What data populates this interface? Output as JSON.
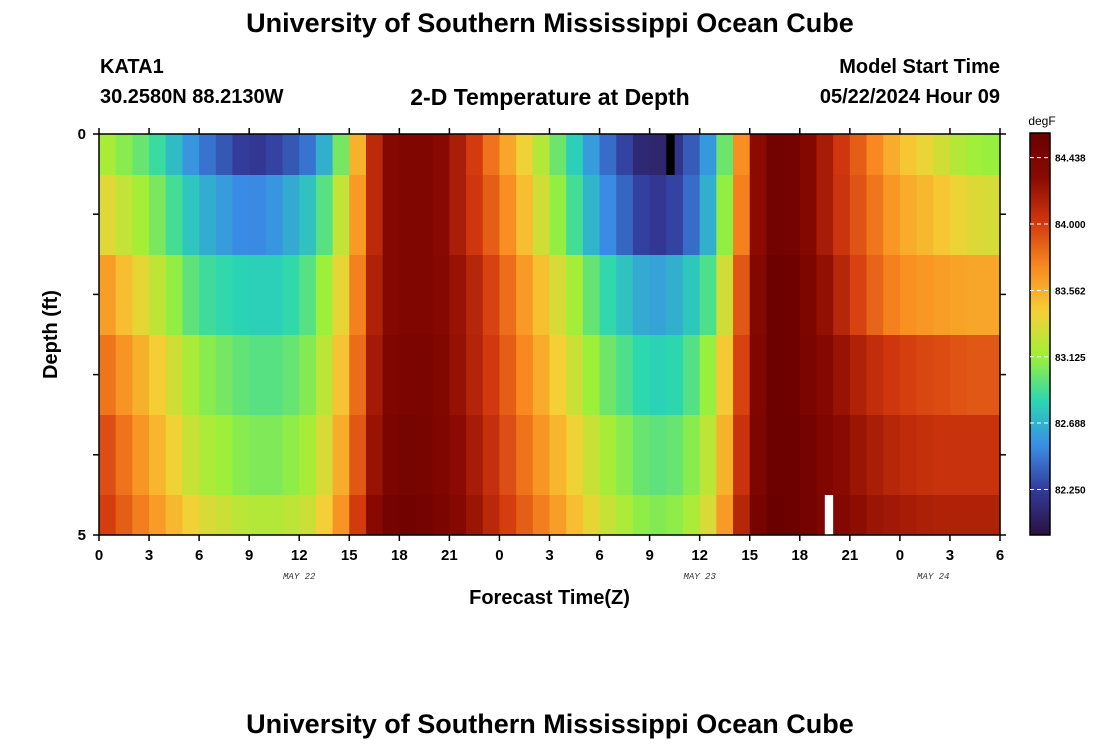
{
  "header": {
    "main_title": "University of Southern Mississippi Ocean Cube",
    "station_id": "KATA1",
    "station_coords": "30.2580N  88.2130W",
    "plot_title": "2-D Temperature at Depth",
    "model_start_label": "Model Start Time",
    "model_start_value": "05/22/2024 Hour 09"
  },
  "footer": {
    "title": "University of Southern Mississippi Ocean Cube"
  },
  "chart_data": {
    "type": "heatmap",
    "title": "2-D Temperature at Depth",
    "xlabel": "Forecast Time(Z)",
    "ylabel": "Depth (ft)",
    "x_start_hour": 0,
    "x_end_hour": 54,
    "x_tick_labels": [
      "0",
      "3",
      "6",
      "9",
      "12",
      "15",
      "18",
      "21",
      "0",
      "3",
      "6",
      "9",
      "12",
      "15",
      "18",
      "21",
      "0",
      "3",
      "6"
    ],
    "date_labels": [
      {
        "label": "MAY 22",
        "hour": 12
      },
      {
        "label": "MAY 23",
        "hour": 36
      },
      {
        "label": "MAY 24",
        "hour": 50
      }
    ],
    "y_tick_labels": [
      "0",
      "5"
    ],
    "ylim": [
      0,
      5
    ],
    "depths_ft": [
      0.25,
      1.5,
      2.5,
      3.5,
      4.5,
      5.0
    ],
    "colorbar": {
      "unit": "degF",
      "min": 81.95,
      "max": 84.6,
      "ticks": [
        "84.438",
        "84.000",
        "83.562",
        "83.125",
        "82.688",
        "82.250"
      ],
      "tick_values": [
        84.438,
        84.0,
        83.562,
        83.125,
        82.688,
        82.25
      ],
      "colors": [
        "#2a1140",
        "#333a9a",
        "#3a8de6",
        "#2ad7b2",
        "#9ef038",
        "#f5d036",
        "#f98a20",
        "#d2380e",
        "#8a0a02",
        "#6a0000"
      ]
    },
    "key_times_hours": [
      0,
      3,
      6,
      9,
      11,
      13,
      15,
      16,
      17,
      18,
      20,
      22,
      24,
      27,
      30,
      33,
      35,
      37,
      38,
      39,
      40,
      41,
      42,
      44,
      46,
      48,
      50,
      52,
      54
    ],
    "key_values_degF": [
      [
        83.2,
        82.95,
        82.5,
        82.2,
        82.3,
        82.5,
        83.2,
        83.9,
        84.3,
        84.4,
        84.4,
        84.1,
        83.7,
        83.1,
        82.5,
        82.05,
        82.25,
        82.7,
        83.3,
        84.1,
        84.5,
        84.55,
        84.45,
        84.1,
        83.8,
        83.5,
        83.35,
        83.15,
        83.1
      ],
      [
        83.4,
        83.1,
        82.7,
        82.5,
        82.6,
        82.8,
        83.4,
        83.9,
        84.3,
        84.4,
        84.4,
        84.1,
        83.8,
        83.2,
        82.6,
        82.2,
        82.3,
        82.8,
        83.4,
        84.1,
        84.5,
        84.55,
        84.45,
        84.1,
        83.85,
        83.6,
        83.5,
        83.35,
        83.3
      ],
      [
        83.7,
        83.3,
        82.9,
        82.8,
        82.8,
        83.0,
        83.5,
        84.0,
        84.3,
        84.4,
        84.4,
        84.2,
        83.9,
        83.4,
        82.9,
        82.6,
        82.7,
        83.0,
        83.6,
        84.2,
        84.55,
        84.6,
        84.5,
        84.2,
        83.9,
        83.7,
        83.65,
        83.6,
        83.6
      ],
      [
        83.85,
        83.5,
        83.1,
        82.95,
        82.95,
        83.1,
        83.6,
        84.05,
        84.35,
        84.45,
        84.45,
        84.2,
        83.95,
        83.5,
        83.05,
        82.8,
        82.85,
        83.2,
        83.7,
        84.25,
        84.55,
        84.6,
        84.5,
        84.3,
        84.1,
        84.0,
        83.95,
        83.9,
        83.9
      ],
      [
        84.0,
        83.6,
        83.2,
        83.05,
        83.05,
        83.2,
        83.7,
        84.1,
        84.4,
        84.5,
        84.45,
        84.25,
        84.0,
        83.6,
        83.2,
        82.95,
        83.0,
        83.3,
        83.8,
        84.3,
        84.55,
        84.6,
        84.55,
        84.35,
        84.2,
        84.1,
        84.05,
        84.05,
        84.05
      ],
      [
        84.05,
        83.7,
        83.35,
        83.2,
        83.2,
        83.3,
        83.8,
        84.2,
        84.45,
        84.55,
        84.5,
        84.3,
        84.05,
        83.7,
        83.3,
        83.05,
        83.1,
        83.4,
        83.9,
        84.35,
        84.6,
        84.6,
        84.55,
        84.4,
        84.25,
        84.2,
        84.15,
        84.15,
        84.15
      ]
    ],
    "missing_marks": [
      {
        "row": 0,
        "hour_start": 34,
        "hour_end": 34.5,
        "color": "#000000"
      },
      {
        "row": 5,
        "hour_start": 43.5,
        "hour_end": 44,
        "color": "#ffffff"
      }
    ]
  }
}
